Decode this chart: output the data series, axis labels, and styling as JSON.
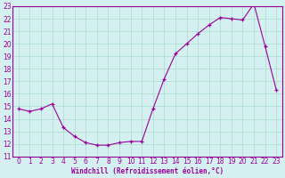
{
  "hours": [
    0,
    1,
    2,
    3,
    4,
    5,
    6,
    7,
    8,
    9,
    10,
    11,
    12,
    13,
    14,
    15,
    16,
    17,
    18,
    19,
    20,
    21,
    22,
    23
  ],
  "values": [
    14.8,
    14.6,
    14.8,
    15.2,
    13.3,
    12.6,
    12.1,
    11.9,
    11.9,
    12.1,
    12.2,
    12.2,
    14.8,
    17.2,
    19.2,
    20.0,
    20.8,
    21.5,
    22.1,
    22.0,
    21.9,
    23.2,
    19.8,
    16.3
  ],
  "line_color": "#990099",
  "marker_color": "#990099",
  "bg_color": "#d4f0f0",
  "grid_color": "#aaddcc",
  "xlabel": "Windchill (Refroidissement éolien,°C)",
  "xlabel_color": "#990099",
  "tick_color": "#990099",
  "spine_color": "#990099",
  "ylim": [
    11,
    23
  ],
  "xlim": [
    -0.5,
    23.5
  ],
  "yticks": [
    11,
    12,
    13,
    14,
    15,
    16,
    17,
    18,
    19,
    20,
    21,
    22,
    23
  ],
  "xticks": [
    0,
    1,
    2,
    3,
    4,
    5,
    6,
    7,
    8,
    9,
    10,
    11,
    12,
    13,
    14,
    15,
    16,
    17,
    18,
    19,
    20,
    21,
    22,
    23
  ],
  "figsize": [
    3.2,
    2.0
  ],
  "dpi": 100
}
